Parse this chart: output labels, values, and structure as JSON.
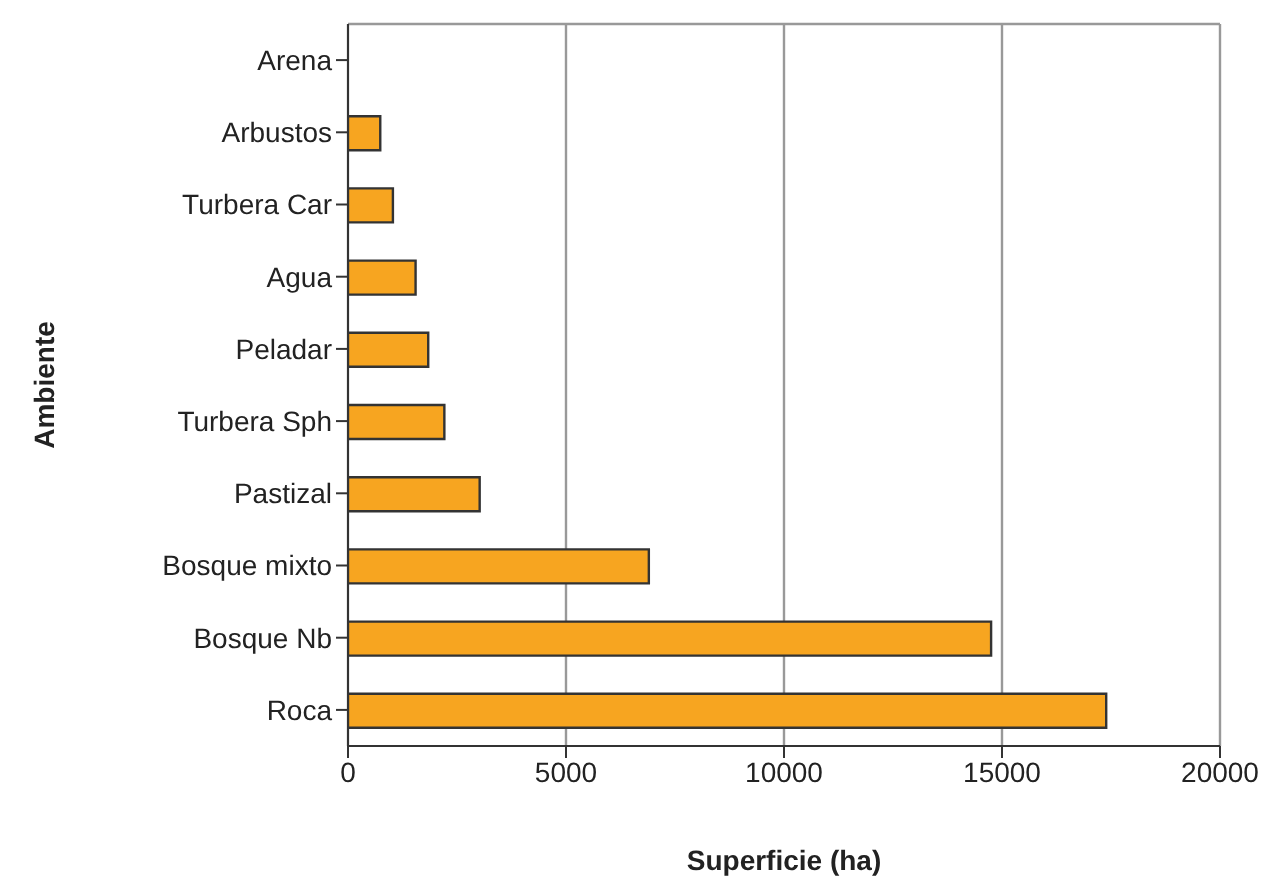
{
  "chart_data": {
    "type": "bar",
    "orientation": "horizontal",
    "xlabel": "Superficie (ha)",
    "ylabel": "Ambiente",
    "categories": [
      "Arena",
      "Arbustos",
      "Turbera Car",
      "Agua",
      "Peladar",
      "Turbera Sph",
      "Pastizal",
      "Bosque mixto",
      "Bosque Nb",
      "Roca"
    ],
    "values": [
      0,
      740,
      1030,
      1550,
      1840,
      2210,
      3020,
      6900,
      14750,
      17390
    ],
    "color": "#f7a520",
    "xlim": [
      0,
      20000
    ],
    "xticks": [
      0,
      5000,
      10000,
      15000,
      20000
    ],
    "grid": "x"
  }
}
